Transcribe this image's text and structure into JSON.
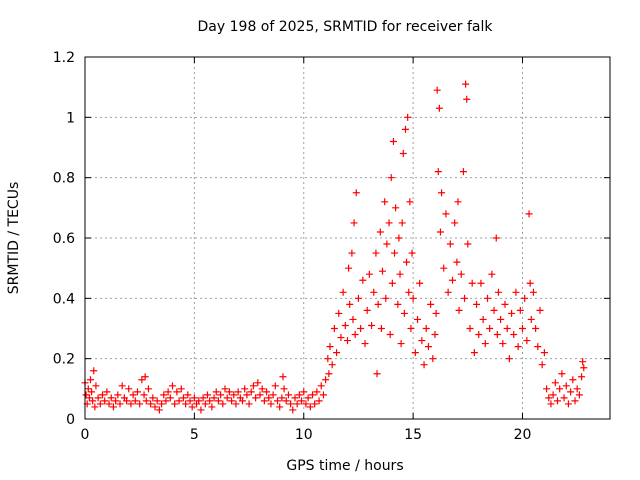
{
  "chart_data": {
    "type": "scatter",
    "title": "Day 198 of 2025, SRMTID for receiver falk",
    "xlabel": "GPS time / hours",
    "ylabel": "SRMTID / TECUs",
    "xlim": [
      0,
      24
    ],
    "ylim": [
      0,
      1.2
    ],
    "xticks": [
      0,
      5,
      10,
      15,
      20
    ],
    "xtick_labels": [
      "0",
      "5",
      "10",
      "15",
      "20"
    ],
    "yticks": [
      0,
      0.2,
      0.4,
      0.6,
      0.8,
      1.0,
      1.2
    ],
    "ytick_labels": [
      "0",
      "0.2",
      "0.4",
      "0.6",
      "0.8",
      "1",
      "1.2"
    ],
    "grid": true,
    "marker": "+",
    "color": "#ff0000",
    "series": [
      {
        "name": "SRMTID",
        "points": [
          [
            0.0,
            0.12
          ],
          [
            0.05,
            0.08
          ],
          [
            0.1,
            0.05
          ],
          [
            0.15,
            0.1
          ],
          [
            0.2,
            0.07
          ],
          [
            0.25,
            0.13
          ],
          [
            0.3,
            0.09
          ],
          [
            0.35,
            0.06
          ],
          [
            0.4,
            0.16
          ],
          [
            0.45,
            0.04
          ],
          [
            0.5,
            0.11
          ],
          [
            0.6,
            0.07
          ],
          [
            0.7,
            0.05
          ],
          [
            0.8,
            0.08
          ],
          [
            0.9,
            0.06
          ],
          [
            1.0,
            0.09
          ],
          [
            1.1,
            0.05
          ],
          [
            1.2,
            0.07
          ],
          [
            1.3,
            0.04
          ],
          [
            1.4,
            0.06
          ],
          [
            1.5,
            0.08
          ],
          [
            1.6,
            0.05
          ],
          [
            1.7,
            0.11
          ],
          [
            1.8,
            0.07
          ],
          [
            1.9,
            0.06
          ],
          [
            2.0,
            0.1
          ],
          [
            2.1,
            0.05
          ],
          [
            2.2,
            0.08
          ],
          [
            2.3,
            0.06
          ],
          [
            2.4,
            0.09
          ],
          [
            2.5,
            0.05
          ],
          [
            2.6,
            0.13
          ],
          [
            2.7,
            0.08
          ],
          [
            2.75,
            0.14
          ],
          [
            2.8,
            0.06
          ],
          [
            2.9,
            0.1
          ],
          [
            3.0,
            0.05
          ],
          [
            3.1,
            0.07
          ],
          [
            3.2,
            0.04
          ],
          [
            3.3,
            0.06
          ],
          [
            3.4,
            0.03
          ],
          [
            3.5,
            0.05
          ],
          [
            3.6,
            0.08
          ],
          [
            3.7,
            0.06
          ],
          [
            3.8,
            0.09
          ],
          [
            3.9,
            0.07
          ],
          [
            4.0,
            0.11
          ],
          [
            4.1,
            0.05
          ],
          [
            4.2,
            0.09
          ],
          [
            4.3,
            0.06
          ],
          [
            4.4,
            0.1
          ],
          [
            4.5,
            0.07
          ],
          [
            4.6,
            0.05
          ],
          [
            4.7,
            0.08
          ],
          [
            4.8,
            0.06
          ],
          [
            4.9,
            0.04
          ],
          [
            5.0,
            0.07
          ],
          [
            5.1,
            0.05
          ],
          [
            5.2,
            0.06
          ],
          [
            5.3,
            0.03
          ],
          [
            5.4,
            0.07
          ],
          [
            5.5,
            0.05
          ],
          [
            5.6,
            0.08
          ],
          [
            5.7,
            0.06
          ],
          [
            5.8,
            0.04
          ],
          [
            5.9,
            0.07
          ],
          [
            6.0,
            0.09
          ],
          [
            6.1,
            0.06
          ],
          [
            6.2,
            0.08
          ],
          [
            6.3,
            0.05
          ],
          [
            6.4,
            0.1
          ],
          [
            6.5,
            0.07
          ],
          [
            6.6,
            0.09
          ],
          [
            6.7,
            0.06
          ],
          [
            6.8,
            0.08
          ],
          [
            6.9,
            0.05
          ],
          [
            7.0,
            0.09
          ],
          [
            7.1,
            0.07
          ],
          [
            7.2,
            0.06
          ],
          [
            7.3,
            0.1
          ],
          [
            7.4,
            0.08
          ],
          [
            7.5,
            0.05
          ],
          [
            7.6,
            0.09
          ],
          [
            7.7,
            0.11
          ],
          [
            7.8,
            0.07
          ],
          [
            7.9,
            0.12
          ],
          [
            8.0,
            0.08
          ],
          [
            8.1,
            0.1
          ],
          [
            8.2,
            0.06
          ],
          [
            8.3,
            0.09
          ],
          [
            8.4,
            0.07
          ],
          [
            8.5,
            0.05
          ],
          [
            8.6,
            0.08
          ],
          [
            8.7,
            0.11
          ],
          [
            8.8,
            0.06
          ],
          [
            8.9,
            0.04
          ],
          [
            9.0,
            0.07
          ],
          [
            9.05,
            0.14
          ],
          [
            9.1,
            0.1
          ],
          [
            9.2,
            0.06
          ],
          [
            9.3,
            0.08
          ],
          [
            9.4,
            0.05
          ],
          [
            9.5,
            0.03
          ],
          [
            9.6,
            0.07
          ],
          [
            9.7,
            0.05
          ],
          [
            9.8,
            0.08
          ],
          [
            9.9,
            0.06
          ],
          [
            10.0,
            0.09
          ],
          [
            10.1,
            0.05
          ],
          [
            10.2,
            0.07
          ],
          [
            10.3,
            0.04
          ],
          [
            10.4,
            0.08
          ],
          [
            10.5,
            0.05
          ],
          [
            10.6,
            0.09
          ],
          [
            10.7,
            0.06
          ],
          [
            10.8,
            0.11
          ],
          [
            10.9,
            0.08
          ],
          [
            11.0,
            0.13
          ],
          [
            11.1,
            0.2
          ],
          [
            11.15,
            0.15
          ],
          [
            11.2,
            0.24
          ],
          [
            11.3,
            0.18
          ],
          [
            11.4,
            0.3
          ],
          [
            11.5,
            0.22
          ],
          [
            11.6,
            0.35
          ],
          [
            11.7,
            0.27
          ],
          [
            11.8,
            0.42
          ],
          [
            11.9,
            0.31
          ],
          [
            12.0,
            0.26
          ],
          [
            12.05,
            0.5
          ],
          [
            12.1,
            0.38
          ],
          [
            12.2,
            0.55
          ],
          [
            12.25,
            0.33
          ],
          [
            12.3,
            0.65
          ],
          [
            12.35,
            0.28
          ],
          [
            12.4,
            0.75
          ],
          [
            12.5,
            0.4
          ],
          [
            12.6,
            0.3
          ],
          [
            12.7,
            0.46
          ],
          [
            12.8,
            0.25
          ],
          [
            12.9,
            0.36
          ],
          [
            13.0,
            0.48
          ],
          [
            13.1,
            0.31
          ],
          [
            13.2,
            0.42
          ],
          [
            13.3,
            0.55
          ],
          [
            13.35,
            0.15
          ],
          [
            13.4,
            0.38
          ],
          [
            13.5,
            0.62
          ],
          [
            13.55,
            0.3
          ],
          [
            13.6,
            0.49
          ],
          [
            13.7,
            0.72
          ],
          [
            13.75,
            0.4
          ],
          [
            13.8,
            0.58
          ],
          [
            13.9,
            0.65
          ],
          [
            13.95,
            0.28
          ],
          [
            14.0,
            0.8
          ],
          [
            14.05,
            0.45
          ],
          [
            14.1,
            0.92
          ],
          [
            14.15,
            0.55
          ],
          [
            14.2,
            0.7
          ],
          [
            14.3,
            0.38
          ],
          [
            14.35,
            0.6
          ],
          [
            14.4,
            0.48
          ],
          [
            14.45,
            0.25
          ],
          [
            14.5,
            0.65
          ],
          [
            14.55,
            0.88
          ],
          [
            14.6,
            0.35
          ],
          [
            14.65,
            0.96
          ],
          [
            14.7,
            0.52
          ],
          [
            14.75,
            1.0
          ],
          [
            14.8,
            0.42
          ],
          [
            14.85,
            0.72
          ],
          [
            14.9,
            0.3
          ],
          [
            14.95,
            0.55
          ],
          [
            15.0,
            0.4
          ],
          [
            15.1,
            0.22
          ],
          [
            15.2,
            0.33
          ],
          [
            15.3,
            0.45
          ],
          [
            15.4,
            0.26
          ],
          [
            15.5,
            0.18
          ],
          [
            15.6,
            0.3
          ],
          [
            15.7,
            0.24
          ],
          [
            15.8,
            0.38
          ],
          [
            15.9,
            0.2
          ],
          [
            16.0,
            0.28
          ],
          [
            16.05,
            0.35
          ],
          [
            16.1,
            1.09
          ],
          [
            16.15,
            0.82
          ],
          [
            16.2,
            1.03
          ],
          [
            16.25,
            0.62
          ],
          [
            16.3,
            0.75
          ],
          [
            16.4,
            0.5
          ],
          [
            16.5,
            0.68
          ],
          [
            16.6,
            0.42
          ],
          [
            16.7,
            0.58
          ],
          [
            16.8,
            0.46
          ],
          [
            16.9,
            0.65
          ],
          [
            17.0,
            0.52
          ],
          [
            17.05,
            0.72
          ],
          [
            17.1,
            0.36
          ],
          [
            17.2,
            0.48
          ],
          [
            17.3,
            0.82
          ],
          [
            17.35,
            0.4
          ],
          [
            17.4,
            1.11
          ],
          [
            17.45,
            1.06
          ],
          [
            17.5,
            0.58
          ],
          [
            17.6,
            0.3
          ],
          [
            17.7,
            0.45
          ],
          [
            17.8,
            0.22
          ],
          [
            17.9,
            0.38
          ],
          [
            18.0,
            0.28
          ],
          [
            18.1,
            0.45
          ],
          [
            18.2,
            0.33
          ],
          [
            18.3,
            0.25
          ],
          [
            18.4,
            0.4
          ],
          [
            18.5,
            0.3
          ],
          [
            18.6,
            0.48
          ],
          [
            18.7,
            0.36
          ],
          [
            18.8,
            0.6
          ],
          [
            18.85,
            0.28
          ],
          [
            18.9,
            0.42
          ],
          [
            19.0,
            0.33
          ],
          [
            19.1,
            0.25
          ],
          [
            19.2,
            0.38
          ],
          [
            19.3,
            0.3
          ],
          [
            19.4,
            0.2
          ],
          [
            19.5,
            0.35
          ],
          [
            19.6,
            0.28
          ],
          [
            19.7,
            0.42
          ],
          [
            19.8,
            0.24
          ],
          [
            19.9,
            0.36
          ],
          [
            20.0,
            0.3
          ],
          [
            20.1,
            0.4
          ],
          [
            20.2,
            0.26
          ],
          [
            20.3,
            0.68
          ],
          [
            20.35,
            0.45
          ],
          [
            20.4,
            0.33
          ],
          [
            20.5,
            0.42
          ],
          [
            20.6,
            0.3
          ],
          [
            20.7,
            0.24
          ],
          [
            20.8,
            0.36
          ],
          [
            20.9,
            0.18
          ],
          [
            21.0,
            0.22
          ],
          [
            21.1,
            0.1
          ],
          [
            21.2,
            0.07
          ],
          [
            21.3,
            0.05
          ],
          [
            21.4,
            0.08
          ],
          [
            21.5,
            0.12
          ],
          [
            21.6,
            0.06
          ],
          [
            21.7,
            0.1
          ],
          [
            21.8,
            0.15
          ],
          [
            21.9,
            0.07
          ],
          [
            22.0,
            0.11
          ],
          [
            22.1,
            0.05
          ],
          [
            22.2,
            0.09
          ],
          [
            22.3,
            0.13
          ],
          [
            22.4,
            0.06
          ],
          [
            22.5,
            0.1
          ],
          [
            22.6,
            0.08
          ],
          [
            22.7,
            0.14
          ],
          [
            22.75,
            0.19
          ],
          [
            22.8,
            0.17
          ]
        ]
      }
    ]
  }
}
